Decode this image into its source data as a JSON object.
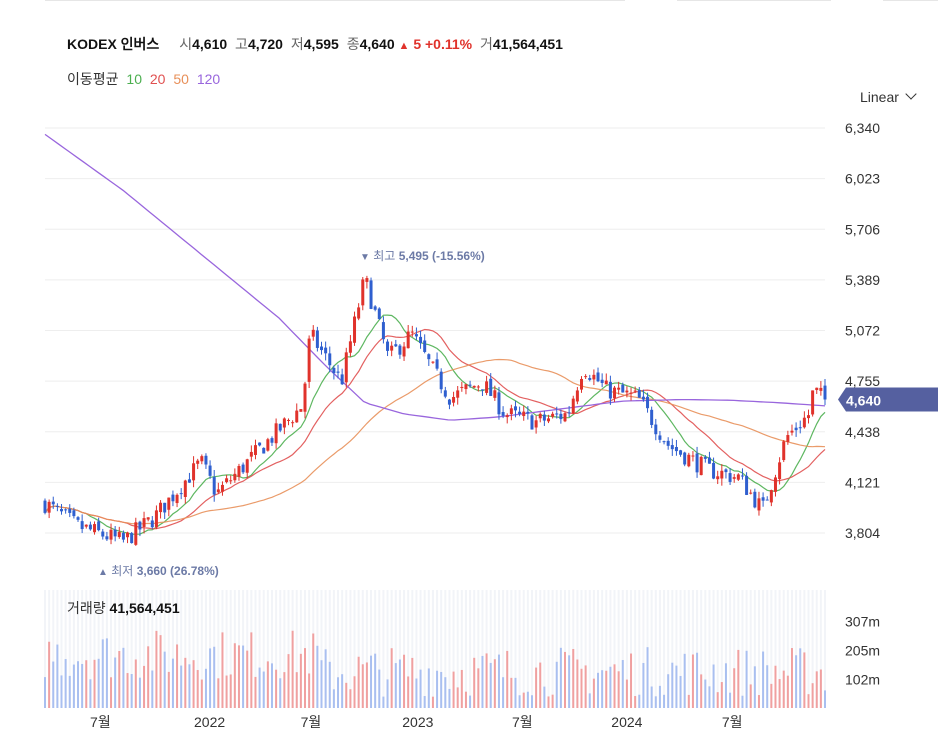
{
  "header": {
    "name": "KODEX 인버스",
    "open_label": "시",
    "open": "4,610",
    "high_label": "고",
    "high": "4,720",
    "low_label": "저",
    "low": "4,595",
    "close_label": "종",
    "close": "4,640",
    "change_arrow": "▲",
    "change": "5",
    "change_pct": "+0.11%",
    "volume_label": "거",
    "volume": "41,564,451"
  },
  "ma_legend": {
    "label": "이동평균",
    "periods": [
      "10",
      "20",
      "50",
      "120"
    ],
    "colors": [
      "#4caf50",
      "#e05050",
      "#e8905a",
      "#9966dd"
    ]
  },
  "scale_mode": "Linear",
  "colors": {
    "up": "#e0322b",
    "down": "#2f5fcf",
    "price_tag": "#5560a0",
    "annotation": "#6c7aa6"
  },
  "chart_data": {
    "type": "candlestick",
    "y_ticks": [
      "6,340",
      "6,023",
      "5,706",
      "5,389",
      "5,072",
      "4,755",
      "4,438",
      "4,121",
      "3,804"
    ],
    "ylim": [
      3700,
      6450
    ],
    "x_ticks": [
      "7월",
      "2022",
      "7월",
      "2023",
      "7월",
      "2024",
      "7월"
    ],
    "x_tick_positions": [
      0.071,
      0.211,
      0.341,
      0.478,
      0.612,
      0.746,
      0.881
    ],
    "last_price": "4,640",
    "annotations": {
      "high": {
        "marker": "▼",
        "label": "최고",
        "value": "5,495 (-15.56%)"
      },
      "low": {
        "marker": "▲",
        "label": "최저",
        "value": "3,660 (26.78%)"
      }
    },
    "price_keypoints": [
      [
        0,
        3990
      ],
      [
        0.04,
        3850
      ],
      [
        0.1,
        3750
      ],
      [
        0.14,
        3900
      ],
      [
        0.2,
        4250
      ],
      [
        0.22,
        4050
      ],
      [
        0.28,
        4350
      ],
      [
        0.33,
        4600
      ],
      [
        0.34,
        5050
      ],
      [
        0.38,
        4750
      ],
      [
        0.41,
        5400
      ],
      [
        0.44,
        4900
      ],
      [
        0.47,
        5050
      ],
      [
        0.5,
        4800
      ],
      [
        0.52,
        4650
      ],
      [
        0.56,
        4750
      ],
      [
        0.59,
        4550
      ],
      [
        0.63,
        4500
      ],
      [
        0.67,
        4550
      ],
      [
        0.69,
        4850
      ],
      [
        0.72,
        4700
      ],
      [
        0.76,
        4650
      ],
      [
        0.8,
        4350
      ],
      [
        0.85,
        4200
      ],
      [
        0.89,
        4150
      ],
      [
        0.92,
        3950
      ],
      [
        0.95,
        4400
      ],
      [
        0.98,
        4550
      ],
      [
        0.985,
        4700
      ],
      [
        1.0,
        4640
      ]
    ],
    "ma120_keypoints": [
      [
        0,
        6300
      ],
      [
        0.1,
        5950
      ],
      [
        0.2,
        5550
      ],
      [
        0.3,
        5150
      ],
      [
        0.36,
        4850
      ],
      [
        0.41,
        4620
      ],
      [
        0.46,
        4550
      ],
      [
        0.52,
        4510
      ],
      [
        0.58,
        4530
      ],
      [
        0.66,
        4580
      ],
      [
        0.74,
        4630
      ],
      [
        0.82,
        4640
      ],
      [
        0.88,
        4635
      ],
      [
        0.94,
        4620
      ],
      [
        1.0,
        4600
      ]
    ],
    "volume": {
      "label": "거래량",
      "value": "41,564,451",
      "y_ticks": [
        "307m",
        "205m",
        "102m"
      ],
      "ylim": [
        0,
        420
      ]
    }
  }
}
